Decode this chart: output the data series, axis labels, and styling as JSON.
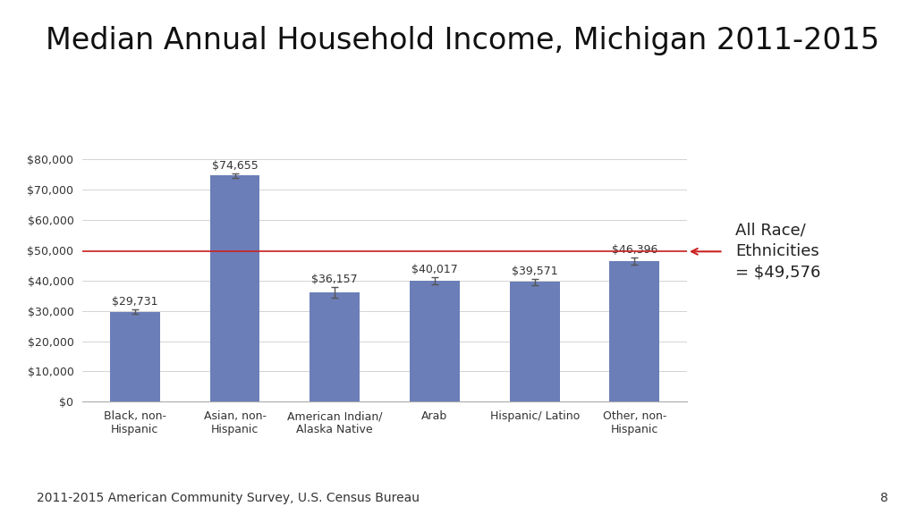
{
  "title": "Median Annual Household Income, Michigan 2011-2015",
  "categories": [
    "Black, non-\nHispanic",
    "Asian, non-\nHispanic",
    "American Indian/\nAlaska Native",
    "Arab",
    "Hispanic/ Latino",
    "Other, non-\nHispanic"
  ],
  "values": [
    29731,
    74655,
    36157,
    40017,
    39571,
    46396
  ],
  "errors": [
    800,
    700,
    1800,
    1200,
    1000,
    1200
  ],
  "bar_color": "#6B7EB8",
  "reference_line": 49576,
  "reference_label": "All Race/\nEthnicities\n= $49,576",
  "reference_arrow_color": "#CC2222",
  "ylim": [
    0,
    85000
  ],
  "yticks": [
    0,
    10000,
    20000,
    30000,
    40000,
    50000,
    60000,
    70000,
    80000
  ],
  "footnote": "2011-2015 American Community Survey, U.S. Census Bureau",
  "page_number": "8",
  "bg_color": "#FFFFFF",
  "grid_color": "#CCCCCC",
  "title_fontsize": 24,
  "tick_fontsize": 9,
  "annotation_fontsize": 9,
  "footnote_fontsize": 10,
  "ref_label_fontsize": 13
}
